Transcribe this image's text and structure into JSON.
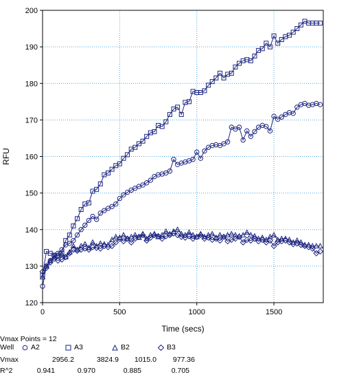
{
  "chart_data": {
    "type": "line",
    "xlabel": "Time (secs)",
    "ylabel": "RFU",
    "xlim": [
      0,
      1820
    ],
    "ylim": [
      120,
      200
    ],
    "xticks": [
      0,
      500,
      1000,
      1500
    ],
    "yticks": [
      120,
      130,
      140,
      150,
      160,
      170,
      180,
      190,
      200
    ],
    "grid": true,
    "line_color": "#1a237e",
    "grid_color": "#4aa3df",
    "series": [
      {
        "name": "A2",
        "marker": "circle",
        "x": [
          0,
          25,
          50,
          75,
          100,
          125,
          150,
          175,
          200,
          225,
          250,
          275,
          300,
          325,
          350,
          375,
          400,
          425,
          450,
          475,
          500,
          525,
          550,
          575,
          600,
          625,
          650,
          675,
          700,
          725,
          750,
          775,
          800,
          825,
          850,
          875,
          900,
          925,
          950,
          975,
          1000,
          1025,
          1050,
          1075,
          1100,
          1125,
          1150,
          1175,
          1200,
          1225,
          1250,
          1275,
          1300,
          1325,
          1350,
          1375,
          1400,
          1425,
          1450,
          1475,
          1500,
          1525,
          1550,
          1575,
          1600,
          1625,
          1650,
          1675,
          1700,
          1725,
          1750,
          1775,
          1800
        ],
        "values": [
          124.5,
          130,
          131.5,
          132.8,
          133.5,
          134.5,
          135.8,
          136.2,
          137,
          138.5,
          140,
          141.2,
          142.5,
          143.6,
          142.8,
          144.5,
          145.2,
          145.8,
          146.3,
          147,
          148.5,
          149.5,
          150.2,
          150.8,
          151.3,
          151.8,
          152.2,
          152.8,
          153.5,
          154.5,
          155,
          155.2,
          155.5,
          156,
          159.2,
          157.8,
          158.2,
          158.5,
          158.8,
          159.2,
          161.2,
          159.5,
          161.5,
          162.5,
          163,
          163.2,
          163,
          163.5,
          164,
          168,
          167.5,
          168,
          164.5,
          167,
          165.5,
          166.8,
          168,
          168.5,
          168.2,
          167,
          171,
          170.2,
          170.8,
          171.5,
          172,
          171.8,
          173.5,
          174.2,
          174.5,
          174,
          174.2,
          174.5,
          174.2
        ]
      },
      {
        "name": "A3",
        "marker": "square",
        "x": [
          0,
          25,
          50,
          75,
          100,
          125,
          150,
          175,
          200,
          225,
          250,
          275,
          300,
          325,
          350,
          375,
          400,
          425,
          450,
          475,
          500,
          525,
          550,
          575,
          600,
          625,
          650,
          675,
          700,
          725,
          750,
          775,
          800,
          825,
          850,
          875,
          900,
          925,
          950,
          975,
          1000,
          1025,
          1050,
          1075,
          1100,
          1125,
          1150,
          1175,
          1200,
          1225,
          1250,
          1275,
          1300,
          1325,
          1350,
          1375,
          1400,
          1425,
          1450,
          1475,
          1500,
          1525,
          1550,
          1575,
          1600,
          1625,
          1650,
          1675,
          1700,
          1725,
          1750,
          1775,
          1800
        ],
        "values": [
          127.5,
          134,
          133.5,
          133,
          132.8,
          133.5,
          137,
          138.5,
          141,
          143,
          145.5,
          147,
          147.3,
          150.5,
          151,
          152.5,
          155,
          155.5,
          156.5,
          157.5,
          158,
          159.5,
          160.5,
          162,
          162.5,
          163.5,
          164.2,
          165.5,
          166.5,
          166.8,
          168.5,
          168.2,
          169.5,
          171.5,
          173,
          173.5,
          171.5,
          174.8,
          175,
          177.8,
          177.5,
          177.5,
          178,
          179.5,
          180.5,
          181.5,
          182.8,
          181.5,
          182.5,
          182.8,
          184.5,
          185.5,
          186.2,
          186.5,
          186.2,
          187.5,
          189,
          189.5,
          191,
          190,
          193,
          191,
          192,
          192.8,
          193.2,
          194,
          195,
          196,
          197,
          196.5,
          196.5,
          196.5,
          196.5
        ]
      },
      {
        "name": "B2",
        "marker": "triangle",
        "x": [
          0,
          25,
          50,
          75,
          100,
          125,
          150,
          175,
          200,
          225,
          250,
          275,
          300,
          325,
          350,
          375,
          400,
          425,
          450,
          475,
          500,
          525,
          550,
          575,
          600,
          625,
          650,
          675,
          700,
          725,
          750,
          775,
          800,
          825,
          850,
          875,
          900,
          925,
          950,
          975,
          1000,
          1025,
          1050,
          1075,
          1100,
          1125,
          1150,
          1175,
          1200,
          1225,
          1250,
          1275,
          1300,
          1325,
          1350,
          1375,
          1400,
          1425,
          1450,
          1475,
          1500,
          1525,
          1550,
          1575,
          1600,
          1625,
          1650,
          1675,
          1700,
          1725,
          1750,
          1775,
          1800
        ],
        "values": [
          127,
          130,
          131.5,
          132.5,
          133,
          133.2,
          132.5,
          133.8,
          135.5,
          134.5,
          135.5,
          136,
          135,
          136.5,
          135.5,
          136.2,
          136,
          135.8,
          137.2,
          138,
          137.8,
          138.5,
          137.5,
          138,
          138.5,
          137.8,
          138.8,
          137.5,
          138.5,
          138.8,
          138,
          138.5,
          139.5,
          138.8,
          139.5,
          140,
          138.8,
          138.5,
          139.2,
          138.5,
          138,
          138.8,
          138,
          138.5,
          138.8,
          137.8,
          138.5,
          138,
          138.5,
          138.8,
          138.5,
          138.2,
          138.5,
          139.2,
          138.5,
          138.2,
          137.5,
          137.8,
          137.2,
          138,
          138.5,
          137.2,
          137.5,
          137.5,
          137.2,
          136.5,
          137,
          136.5,
          135.8,
          135.8,
          135.5,
          135.5,
          135.5
        ]
      },
      {
        "name": "B3",
        "marker": "diamond",
        "x": [
          0,
          25,
          50,
          75,
          100,
          125,
          150,
          175,
          200,
          225,
          250,
          275,
          300,
          325,
          350,
          375,
          400,
          425,
          450,
          475,
          500,
          525,
          550,
          575,
          600,
          625,
          650,
          675,
          700,
          725,
          750,
          775,
          800,
          825,
          850,
          875,
          900,
          925,
          950,
          975,
          1000,
          1025,
          1050,
          1075,
          1100,
          1125,
          1150,
          1175,
          1200,
          1225,
          1250,
          1275,
          1300,
          1325,
          1350,
          1375,
          1400,
          1425,
          1450,
          1475,
          1500,
          1525,
          1550,
          1575,
          1600,
          1625,
          1650,
          1675,
          1700,
          1725,
          1750,
          1775,
          1800
        ],
        "values": [
          128.5,
          129.5,
          131,
          132,
          131.5,
          131.8,
          132.5,
          133.5,
          134.5,
          134.2,
          134.5,
          134.8,
          134.5,
          135.2,
          135,
          134.8,
          135.5,
          135.2,
          135.5,
          136.5,
          137.5,
          136.8,
          137.5,
          136.5,
          137.5,
          138,
          138.5,
          137,
          137.8,
          138.5,
          138.2,
          137.5,
          138.2,
          138.5,
          139,
          138.5,
          138,
          137.8,
          138.2,
          137.5,
          138,
          138.5,
          137.5,
          137.8,
          137.2,
          137.5,
          137,
          138,
          136.8,
          137.2,
          137.5,
          138,
          136.5,
          137.2,
          137,
          137.5,
          136.8,
          137.2,
          136.5,
          137,
          135.5,
          136.5,
          136.8,
          137,
          136.5,
          136,
          136.2,
          135.8,
          135.5,
          135.2,
          134.8,
          133.5,
          134
        ]
      }
    ]
  },
  "footer": {
    "vmax_points": "Vmax Points = 12",
    "well_label": "Well",
    "vmax_label": "Vmax",
    "r2_label": "R^2",
    "wells": [
      {
        "name": "A2",
        "marker": "circle",
        "vmax": "2956.2",
        "r2": "0.941"
      },
      {
        "name": "A3",
        "marker": "square",
        "vmax": "3824.9",
        "r2": "0.970"
      },
      {
        "name": "B2",
        "marker": "triangle",
        "vmax": "1015.0",
        "r2": "0.885"
      },
      {
        "name": "B3",
        "marker": "diamond",
        "vmax": "977.36",
        "r2": "0.705"
      }
    ]
  }
}
